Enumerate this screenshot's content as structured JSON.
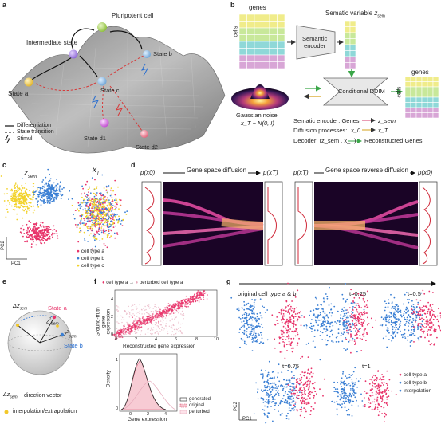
{
  "panels": {
    "a": "a",
    "b": "b",
    "c": "c",
    "d": "d",
    "e": "e",
    "f": "f",
    "g": "g"
  },
  "panel_a": {
    "pluripotent": "Pluripotent cell",
    "intermediate": "Intermediate state",
    "state_b": "State b",
    "state_a": "State a",
    "state_c": "State c",
    "state_d1": "State d1",
    "state_d2": "State d2",
    "legend": [
      "Differentiation",
      "State transition",
      "Stimuli"
    ]
  },
  "panel_b": {
    "genes_top": "genes",
    "semantic_variable": "Sematic variable",
    "z_sem": "z",
    "z_sub": "sem",
    "cells": "cells",
    "encoder": [
      "Semantic",
      "encoder"
    ],
    "ddim": "Conditional DDIM",
    "genes_right": "genes",
    "cells_right": "cells",
    "noise": "Gaussian noise",
    "noise_formula": "x_T ~ N(0, I)",
    "line1_label": "Sematic encoder: Genes",
    "line1_target": "z_sem",
    "line2_label": "Diffusion processes:",
    "line2_from": "x_0",
    "line2_to": "x_T",
    "line3_label": "Decoder: (z_sem , x_T)",
    "line3_target": "Reconstructed Genes",
    "grid_colors": [
      "#f0ec8a",
      "#c8e89a",
      "#8fd8d8",
      "#d8a6d6"
    ]
  },
  "panel_c": {
    "title_left": "z",
    "title_left_sub": "sem",
    "title_right": "x",
    "title_right_sub": "T",
    "axis_x": "PC1",
    "axis_y": "PC2",
    "legend": [
      {
        "label": "cell type a",
        "color": "#e8336a"
      },
      {
        "label": "cell type b",
        "color": "#3a7fd4"
      },
      {
        "label": "cell type c",
        "color": "#f2d22a"
      }
    ]
  },
  "panel_d": {
    "p_x0_left": "p(x0)",
    "forward": "Gene space diffusion",
    "p_xT_mid": "p(xT)",
    "p_xT_mid2": "p(xT)",
    "reverse": "Gene space reverse diffusion",
    "p_x0_right": "p(x0)"
  },
  "panel_e": {
    "delta": "Δz",
    "delta_sub": "sem",
    "state_a": "State a",
    "state_b": "State b",
    "z1": "z",
    "z1_sup": "1",
    "z1_sub": "sem",
    "z2": "z",
    "z2_sup": "2",
    "z2_sub": "sem",
    "legend_delta": "Δz",
    "legend_delta_sub": "sem",
    "legend_delta_text": "direction vector",
    "legend_dot_text": "interpolation/extrapolation"
  },
  "panel_f": {
    "legend_a": "cell type a",
    "legend_b": "perturbed cell type a",
    "ylabel_top": [
      "Ground-truth",
      "gene",
      "expression"
    ],
    "xlabel_top": "Reconstructed gene expression",
    "xticks_top": [
      "0",
      "2",
      "4",
      "6",
      "8",
      "10"
    ],
    "yticks_top": [
      "0",
      "2",
      "4"
    ],
    "ylabel_bottom": "Density",
    "xlabel_bottom": "Gene expression",
    "xticks_bottom": [
      "0",
      "2",
      "4"
    ],
    "yticks_bottom": [
      "0",
      "1"
    ],
    "legend_bottom": [
      "generated",
      "original",
      "perturbed"
    ]
  },
  "panel_g": {
    "title1": "original cell type a & b",
    "t025": "t=0.25",
    "t05": "t=0.5",
    "t075": "t=0.75",
    "t1": "t=1",
    "axis_x": "PC1",
    "axis_y": "PC2",
    "legend": [
      {
        "label": "cell type a",
        "color": "#e8336a"
      },
      {
        "label": "cell type b",
        "color": "#3a7fd4"
      },
      {
        "label": "interpolation",
        "color": "#3a7fd4"
      }
    ]
  },
  "chart_data": [
    {
      "type": "scatter",
      "title": "z_sem",
      "xlabel": "PC1",
      "ylabel": "PC2",
      "series": [
        {
          "name": "cell type a",
          "values": []
        },
        {
          "name": "cell type b",
          "values": []
        },
        {
          "name": "cell type c",
          "values": []
        }
      ]
    },
    {
      "type": "scatter",
      "title": "x_T",
      "xlabel": "PC1",
      "ylabel": "PC2",
      "series": [
        {
          "name": "cell type a",
          "values": []
        },
        {
          "name": "cell type b",
          "values": []
        },
        {
          "name": "cell type c",
          "values": []
        }
      ]
    },
    {
      "type": "scatter",
      "xlabel": "Reconstructed gene expression",
      "ylabel": "Ground-truth gene expression",
      "xlim": [
        0,
        10
      ],
      "ylim": [
        0,
        5
      ],
      "series": [
        {
          "name": "cell type a",
          "values": []
        },
        {
          "name": "perturbed cell type a",
          "values": []
        }
      ]
    },
    {
      "type": "area",
      "xlabel": "Gene expression",
      "ylabel": "Density",
      "series": [
        {
          "name": "generated",
          "values": []
        },
        {
          "name": "original",
          "values": []
        },
        {
          "name": "perturbed",
          "values": []
        }
      ]
    }
  ]
}
